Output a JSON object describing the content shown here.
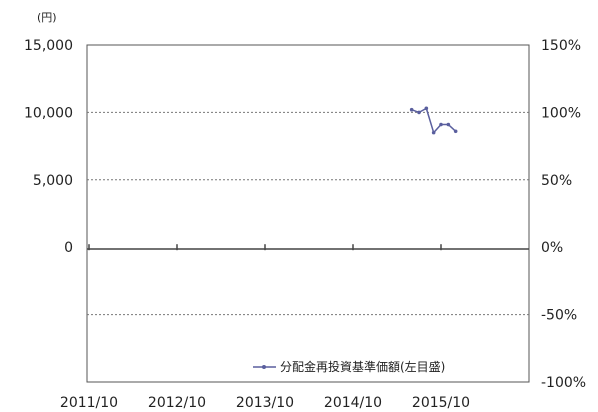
{
  "chart_data": {
    "type": "line",
    "unit_left": "(円)",
    "y_left_ticks": [
      "15,000",
      "10,000",
      "5,000",
      "0"
    ],
    "y_right_ticks": [
      "150%",
      "100%",
      "50%",
      "0%",
      "-50%",
      "-100%"
    ],
    "x_ticks": [
      "2011/10",
      "2012/10",
      "2013/10",
      "2014/10",
      "2015/10"
    ],
    "ylim_left": [
      -10000,
      15000
    ],
    "ylim_right": [
      -100,
      150
    ],
    "grid": "dotted horizontal at 10,000, 5,000 and -5,000",
    "legend_position": "bottom-right",
    "series": [
      {
        "name": "分配金再投資基準価額(左目盛)",
        "axis": "left",
        "color": "#5a5f9e",
        "points": [
          {
            "x": "2015/06",
            "y": 10200
          },
          {
            "x": "2015/07",
            "y": 10000
          },
          {
            "x": "2015/08",
            "y": 10300
          },
          {
            "x": "2015/09",
            "y": 8500
          },
          {
            "x": "2015/10",
            "y": 9100
          },
          {
            "x": "2015/11",
            "y": 9100
          },
          {
            "x": "2015/12",
            "y": 8600
          }
        ]
      }
    ]
  }
}
